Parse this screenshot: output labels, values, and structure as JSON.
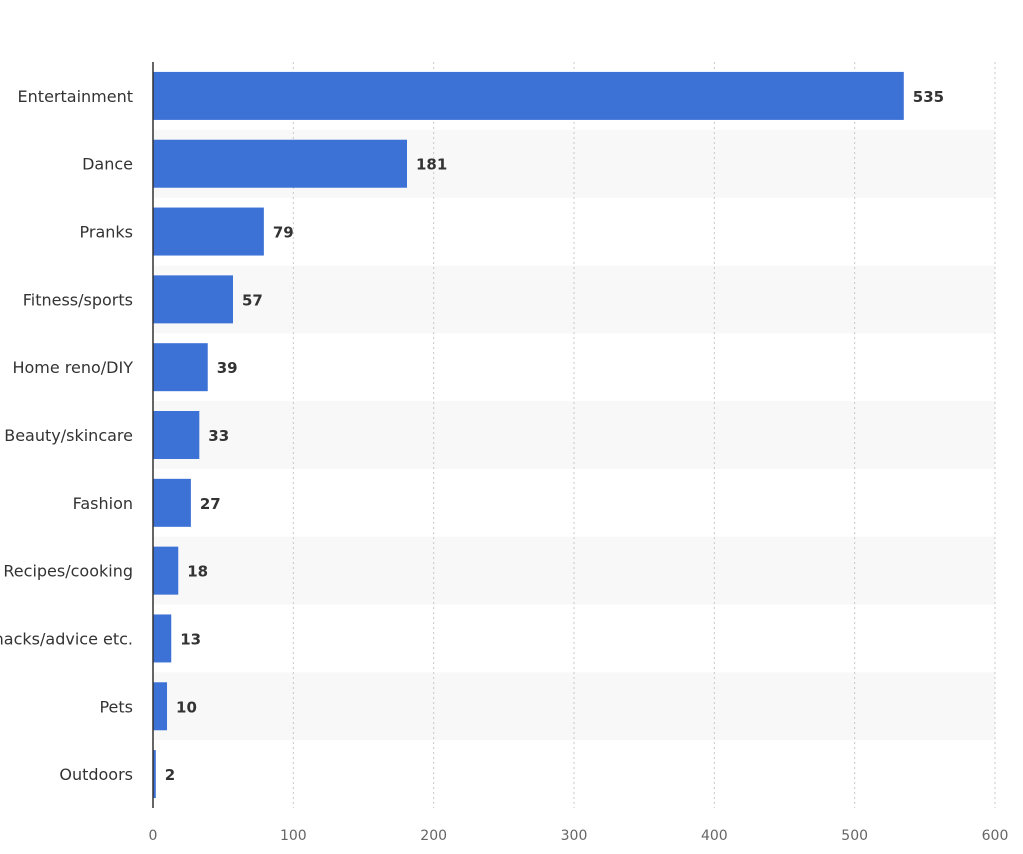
{
  "chart_data": {
    "type": "bar",
    "orientation": "horizontal",
    "categories": [
      "Entertainment",
      "Dance",
      "Pranks",
      "Fitness/sports",
      "Home reno/DIY",
      "Beauty/skincare",
      "Fashion",
      "Recipes/cooking",
      "Life hacks/advice etc.",
      "Pets",
      "Outdoors"
    ],
    "values": [
      535,
      181,
      79,
      57,
      39,
      33,
      27,
      18,
      13,
      10,
      2
    ],
    "xlim": [
      0,
      600
    ],
    "xticks": [
      0,
      100,
      200,
      300,
      400,
      500,
      600
    ],
    "title": "",
    "xlabel": "",
    "ylabel": "",
    "grid": "vertical dotted",
    "bar_color": "#3c72d6",
    "band_color": "#f8f8f8"
  }
}
